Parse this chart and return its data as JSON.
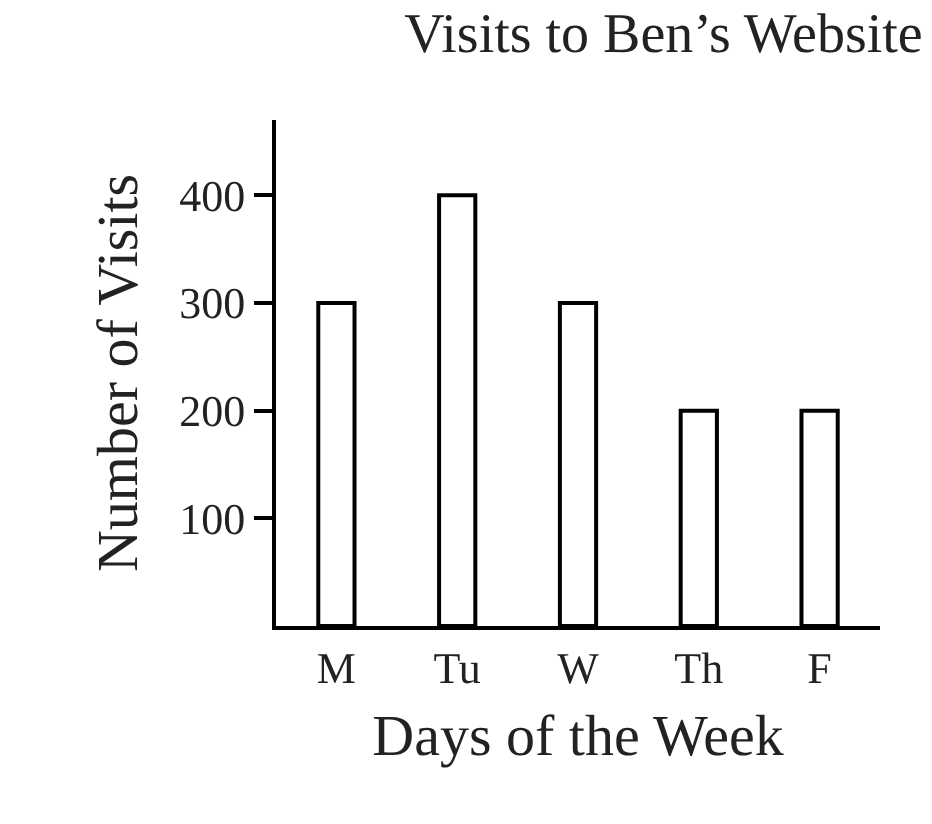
{
  "chart_data": {
    "type": "bar",
    "title": "Visits to Ben’s Website",
    "xlabel": "Days of the Week",
    "ylabel": "Number of Visits",
    "categories": [
      "M",
      "Tu",
      "W",
      "Th",
      "F"
    ],
    "values": [
      300,
      400,
      300,
      200,
      200
    ],
    "color": "#ffffff",
    "ylim": [
      0,
      470
    ],
    "yticks": [
      100,
      200,
      300,
      400
    ],
    "grid": false
  }
}
